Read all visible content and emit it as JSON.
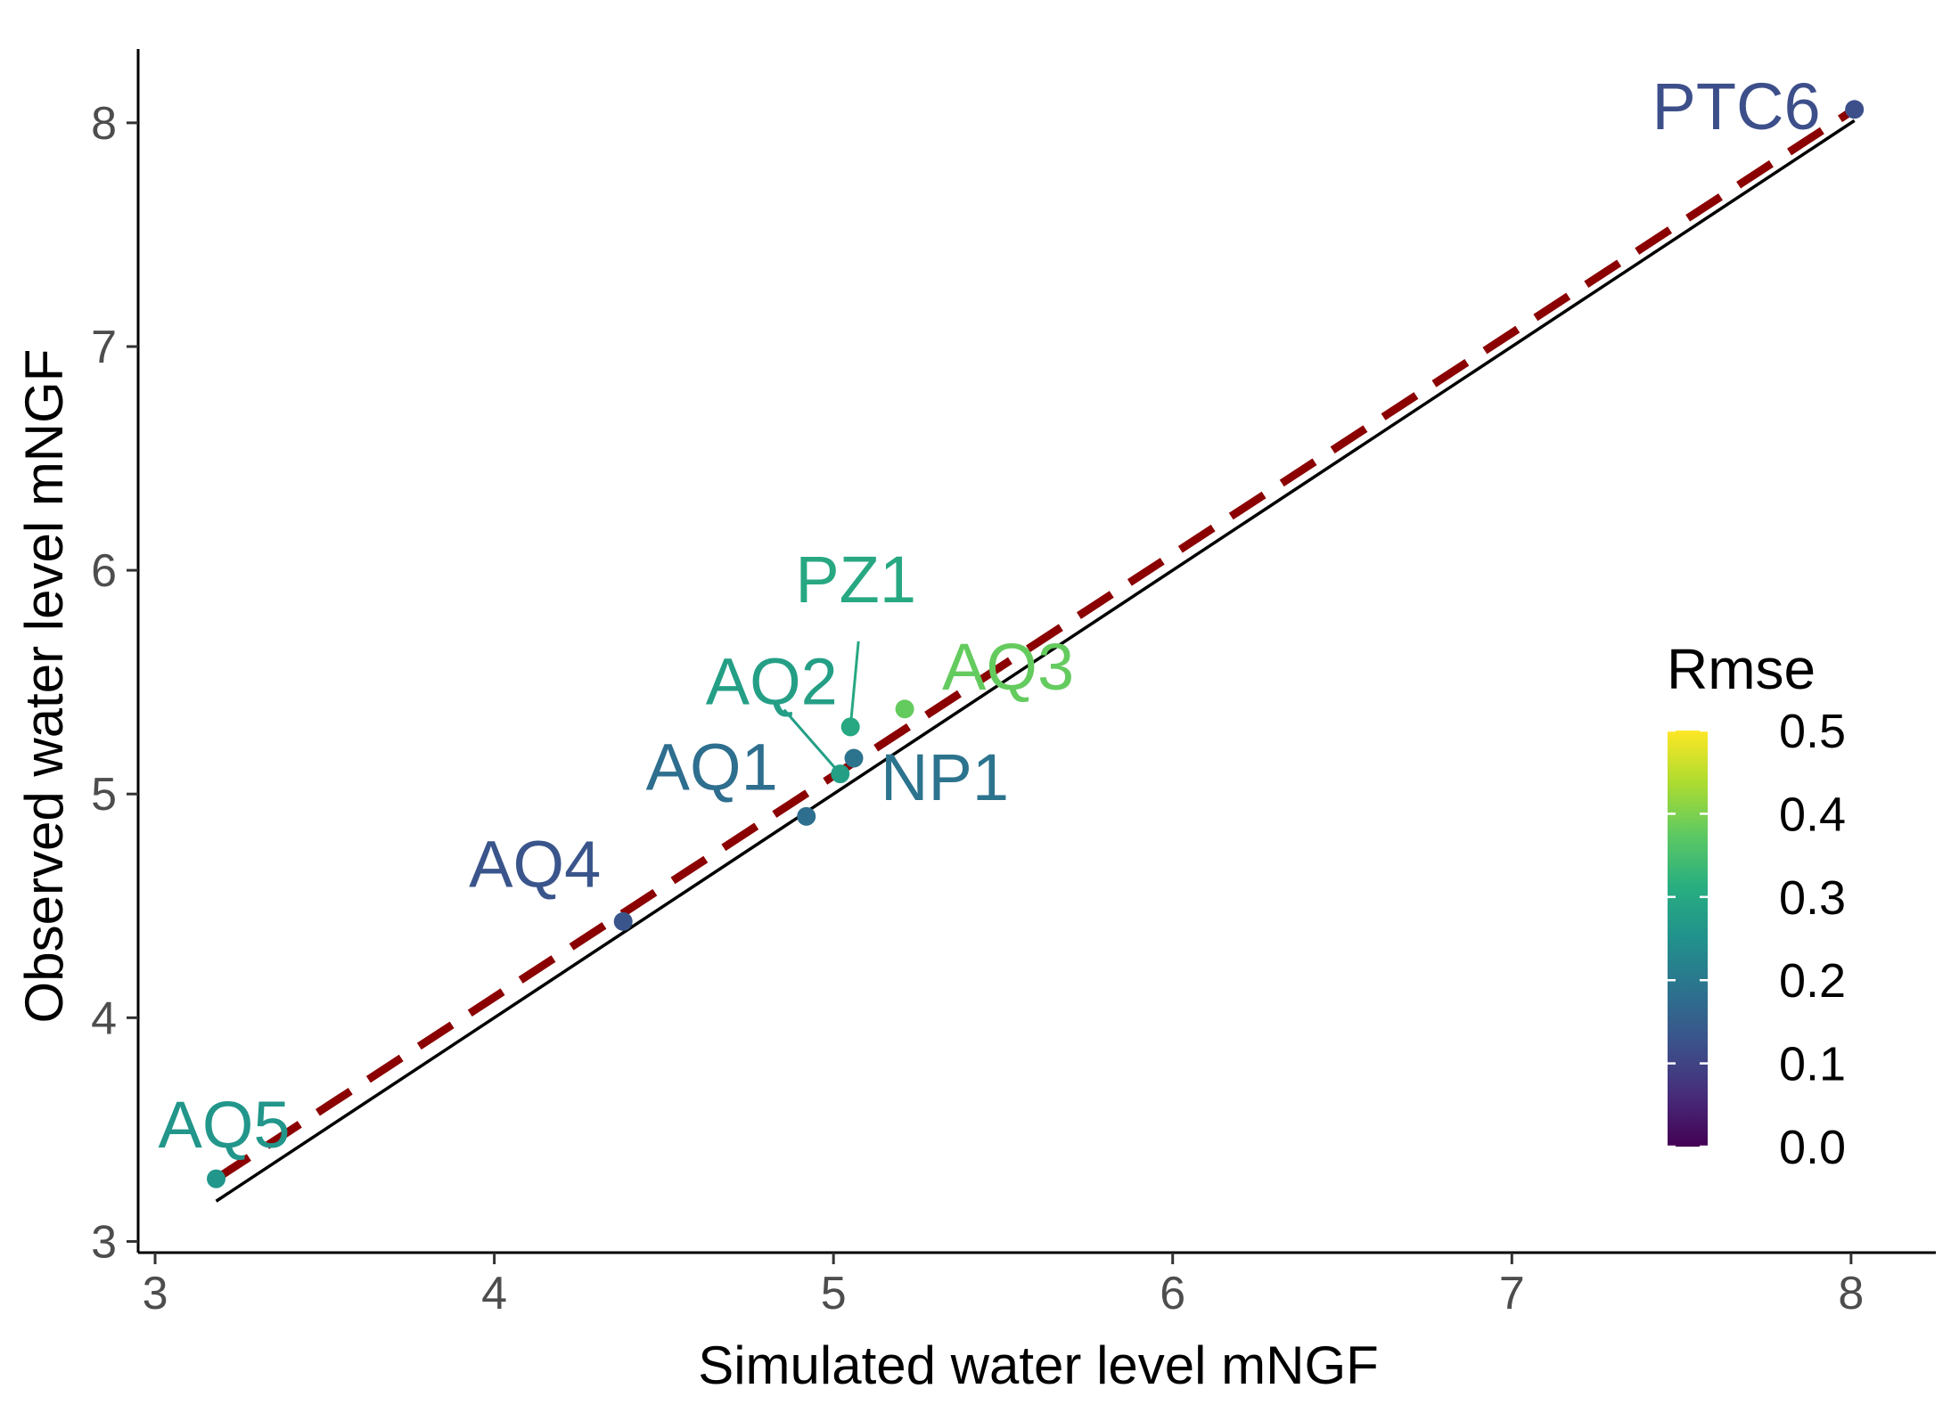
{
  "chart_data": {
    "type": "scatter",
    "title": "",
    "xlabel": "Simulated water level mNGF",
    "ylabel": "Observed water level mNGF",
    "xlim": [
      2.95,
      8.25
    ],
    "ylim": [
      2.95,
      8.33
    ],
    "x_ticks": [
      3,
      4,
      5,
      6,
      7,
      8
    ],
    "y_ticks": [
      3,
      4,
      5,
      6,
      7,
      8
    ],
    "grid": false,
    "points": [
      {
        "label": "PTC6",
        "x": 8.01,
        "y": 8.06,
        "rmse": 0.12
      },
      {
        "label": "PZ1",
        "x": 5.05,
        "y": 5.3,
        "rmse": 0.3
      },
      {
        "label": "AQ3",
        "x": 5.21,
        "y": 5.38,
        "rmse": 0.38
      },
      {
        "label": "AQ2",
        "x": 5.02,
        "y": 5.09,
        "rmse": 0.28
      },
      {
        "label": "NP1",
        "x": 5.06,
        "y": 5.16,
        "rmse": 0.19
      },
      {
        "label": "AQ1",
        "x": 4.92,
        "y": 4.9,
        "rmse": 0.18
      },
      {
        "label": "AQ4",
        "x": 4.38,
        "y": 4.43,
        "rmse": 0.13
      },
      {
        "label": "AQ5",
        "x": 3.18,
        "y": 3.28,
        "rmse": 0.26
      }
    ],
    "identity_line": {
      "x": [
        3.18,
        8.01
      ],
      "y": [
        3.18,
        8.01
      ],
      "color": "#000000",
      "style": "solid"
    },
    "fit_line": {
      "x": [
        3.18,
        8.01
      ],
      "y": [
        3.28,
        8.06
      ],
      "color": "#8B0000",
      "style": "dashed"
    },
    "colorbar": {
      "title": "Rmse",
      "min": 0.0,
      "max": 0.5,
      "ticks": [
        "0.0",
        "0.1",
        "0.2",
        "0.3",
        "0.4",
        "0.5"
      ],
      "palette": "viridis",
      "position": "right"
    }
  }
}
